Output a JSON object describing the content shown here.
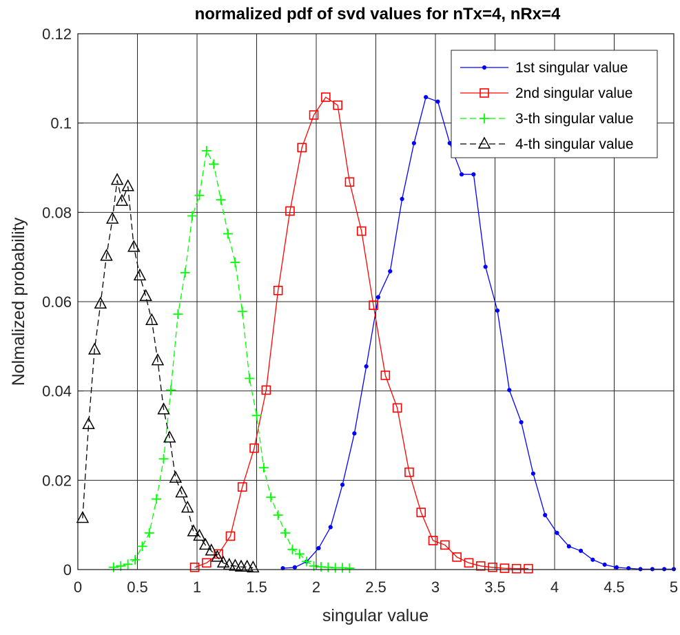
{
  "chart_data": {
    "type": "line",
    "title": "normalized pdf of svd values for nTx=4, nRx=4",
    "xlabel": "singular value",
    "ylabel": "Nolmalized probability",
    "xlim": [
      0,
      5
    ],
    "ylim": [
      0,
      0.12
    ],
    "xticks": [
      "0",
      "0.5",
      "1",
      "1.5",
      "2",
      "2.5",
      "3",
      "3.5",
      "4",
      "4.5",
      "5"
    ],
    "yticks": [
      "0",
      "0.02",
      "0.04",
      "0.06",
      "0.08",
      "0.1",
      "0.12"
    ],
    "grid": true,
    "legend_position": "top-right",
    "series": [
      {
        "name": "1st singular value",
        "color": "#0000ff",
        "marker": "dot",
        "dash": "solid",
        "x": [
          1.72,
          1.82,
          1.92,
          2.02,
          2.12,
          2.22,
          2.32,
          2.42,
          2.52,
          2.62,
          2.72,
          2.82,
          2.92,
          3.02,
          3.12,
          3.22,
          3.32,
          3.42,
          3.52,
          3.62,
          3.72,
          3.82,
          3.92,
          4.02,
          4.12,
          4.22,
          4.32,
          4.42,
          4.52,
          4.62,
          4.72,
          4.82,
          4.92,
          5.0
        ],
        "y": [
          0.0003,
          0.0005,
          0.0018,
          0.0048,
          0.0095,
          0.019,
          0.0305,
          0.0455,
          0.061,
          0.0668,
          0.083,
          0.0955,
          0.1058,
          0.1048,
          0.0955,
          0.0885,
          0.0885,
          0.0678,
          0.058,
          0.0402,
          0.033,
          0.0215,
          0.0122,
          0.0082,
          0.0052,
          0.0042,
          0.0022,
          0.0011,
          0.0005,
          0.0003,
          0.0001,
          0.0001,
          0.0001,
          0.0001
        ]
      },
      {
        "name": "2nd singular value",
        "color": "#ff0000",
        "marker": "square",
        "dash": "solid",
        "x": [
          0.98,
          1.08,
          1.18,
          1.28,
          1.38,
          1.48,
          1.58,
          1.68,
          1.78,
          1.88,
          1.98,
          2.08,
          2.18,
          2.28,
          2.38,
          2.48,
          2.58,
          2.68,
          2.78,
          2.88,
          2.98,
          3.08,
          3.18,
          3.28,
          3.38,
          3.48,
          3.58,
          3.68,
          3.78
        ],
        "y": [
          0.0005,
          0.0015,
          0.0035,
          0.0075,
          0.0185,
          0.0272,
          0.0402,
          0.0625,
          0.0803,
          0.0945,
          0.1018,
          0.1058,
          0.104,
          0.0868,
          0.0758,
          0.0592,
          0.0435,
          0.0362,
          0.0218,
          0.0128,
          0.0065,
          0.0055,
          0.0028,
          0.0015,
          0.0008,
          0.0005,
          0.0003,
          0.0002,
          0.0002
        ]
      },
      {
        "name": "3-th singular value",
        "color": "#00ff00",
        "marker": "plus",
        "dash": "dashed",
        "x": [
          0.3,
          0.36,
          0.42,
          0.48,
          0.54,
          0.6,
          0.66,
          0.72,
          0.78,
          0.84,
          0.9,
          0.96,
          1.02,
          1.08,
          1.14,
          1.2,
          1.26,
          1.32,
          1.38,
          1.44,
          1.5,
          1.56,
          1.62,
          1.68,
          1.74,
          1.8,
          1.86,
          1.92,
          1.98,
          2.04,
          2.1,
          2.16,
          2.22,
          2.28
        ],
        "y": [
          0.0005,
          0.0008,
          0.0012,
          0.0022,
          0.0052,
          0.0082,
          0.0158,
          0.0248,
          0.0402,
          0.0572,
          0.0665,
          0.0792,
          0.0838,
          0.0938,
          0.0908,
          0.0828,
          0.0752,
          0.0688,
          0.0578,
          0.0428,
          0.0345,
          0.0228,
          0.0162,
          0.0122,
          0.0082,
          0.0045,
          0.0035,
          0.0018,
          0.0008,
          0.0006,
          0.0005,
          0.0004,
          0.0004,
          0.0003
        ]
      },
      {
        "name": "4-th singular value",
        "color": "#000000",
        "marker": "triangle",
        "dash": "dashed",
        "x": [
          0.04,
          0.09,
          0.14,
          0.19,
          0.24,
          0.29,
          0.33,
          0.37,
          0.42,
          0.47,
          0.52,
          0.57,
          0.62,
          0.67,
          0.72,
          0.77,
          0.82,
          0.87,
          0.92,
          0.97,
          1.02,
          1.07,
          1.12,
          1.17,
          1.22,
          1.27,
          1.32,
          1.37,
          1.42,
          1.47
        ],
        "y": [
          0.0115,
          0.0325,
          0.0492,
          0.0595,
          0.0702,
          0.0785,
          0.0872,
          0.0825,
          0.0858,
          0.0722,
          0.0658,
          0.0612,
          0.0558,
          0.0468,
          0.0358,
          0.0295,
          0.0205,
          0.0172,
          0.0138,
          0.0085,
          0.0075,
          0.0055,
          0.0042,
          0.0028,
          0.0015,
          0.001,
          0.0008,
          0.0006,
          0.0006,
          0.0004
        ]
      }
    ]
  }
}
